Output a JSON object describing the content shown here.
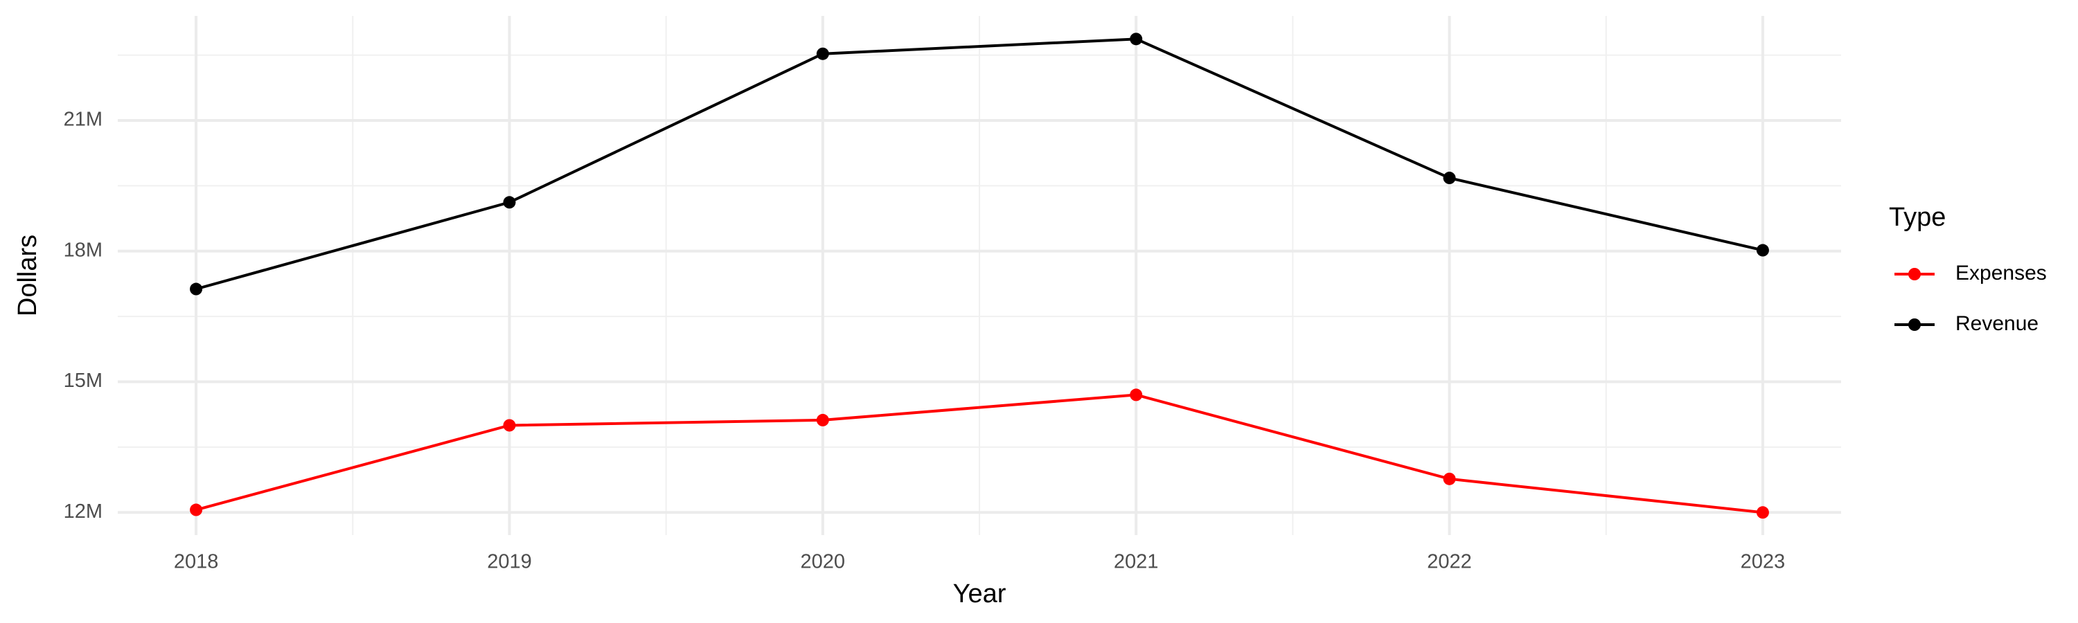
{
  "chart_data": {
    "type": "line",
    "x_label": "Year",
    "y_label": "Dollars",
    "legend_title": "Type",
    "x": [
      2018,
      2019,
      2020,
      2021,
      2022,
      2023
    ],
    "series": [
      {
        "name": "Expenses",
        "color": "#ff0000",
        "values": [
          12060000,
          14000000,
          14120000,
          14700000,
          12770000,
          12000000
        ]
      },
      {
        "name": "Revenue",
        "color": "#000000",
        "values": [
          17130000,
          19120000,
          22530000,
          22870000,
          19680000,
          18020000
        ]
      }
    ],
    "xlim": [
      2017.75,
      2023.25
    ],
    "xticks": [
      2018,
      2019,
      2020,
      2021,
      2022,
      2023
    ],
    "ylim": [
      11480000,
      23400000
    ],
    "yticks": [
      {
        "value": 12000000,
        "label": "12M"
      },
      {
        "value": 15000000,
        "label": "15M"
      },
      {
        "value": 18000000,
        "label": "18M"
      },
      {
        "value": 21000000,
        "label": "21M"
      }
    ],
    "grid": true,
    "legend": "right"
  }
}
